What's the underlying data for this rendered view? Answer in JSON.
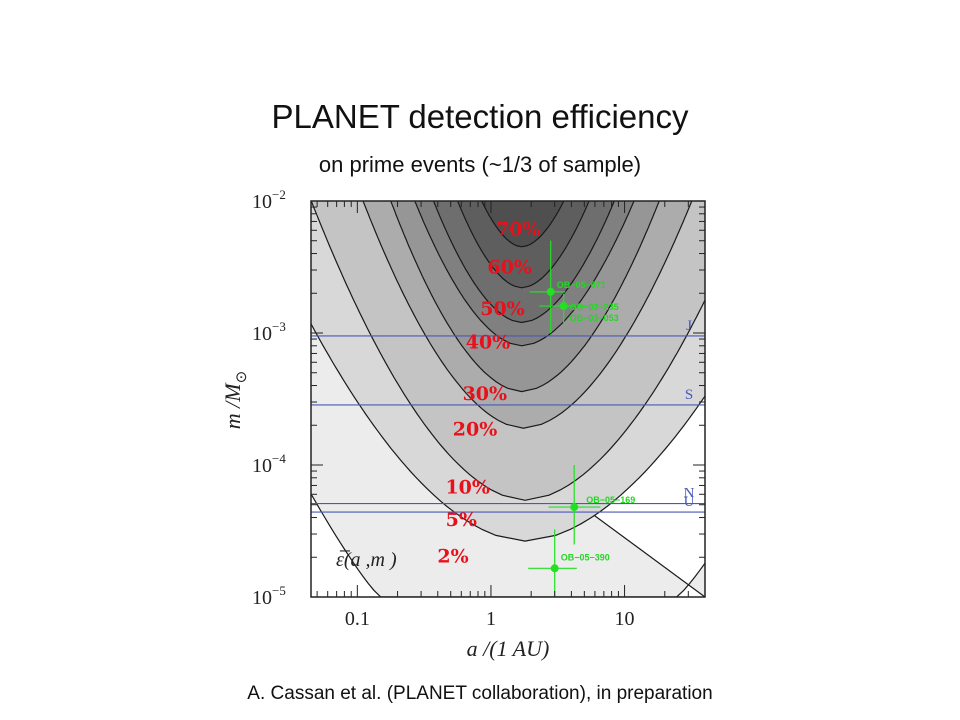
{
  "slide": {
    "title": "PLANET detection efficiency",
    "subtitle": "on prime events (~1/3 of sample)",
    "footer": "A. Cassan et al. (PLANET collaboration), in preparation"
  },
  "chart_data": {
    "type": "contour",
    "xlabel": "a /(1 AU)",
    "ylabel": "m /M",
    "ylabel_subscript": "⊙",
    "x_scale": "log",
    "y_scale": "log",
    "xlim": [
      0.045,
      40
    ],
    "ylim": [
      1e-05,
      0.01
    ],
    "x_ticks": [
      {
        "value": 0.1,
        "label": "0.1"
      },
      {
        "value": 1,
        "label": "1"
      },
      {
        "value": 10,
        "label": "10"
      }
    ],
    "y_ticks": [
      {
        "value": 1e-05,
        "base": "10",
        "exp": "−5"
      },
      {
        "value": 0.0001,
        "base": "10",
        "exp": "−4"
      },
      {
        "value": 0.001,
        "base": "10",
        "exp": "−3"
      },
      {
        "value": 0.01,
        "base": "10",
        "exp": "−2"
      }
    ],
    "annotation": "ε̅(a ,m )",
    "contour_levels": [
      {
        "label": "2%",
        "a_center": 1.8,
        "m_min": 1e-05,
        "half_width_at_1e-5": 1.08,
        "half_width_at_1e-2": 2.72,
        "fill": "#ececec",
        "label_a": 0.52,
        "label_m": 1.82e-05
      },
      {
        "label": "5%",
        "a_center": 1.8,
        "m_min": 2.65e-05,
        "half_width_at_1e-5": 0.0,
        "half_width_at_1e-2": 2.05,
        "fill": "#d8d8d8",
        "label_a": 0.6,
        "label_m": 3.45e-05
      },
      {
        "label": "10%",
        "a_center": 1.8,
        "m_min": 5.4e-05,
        "half_width_at_1e-5": 0.0,
        "half_width_at_1e-2": 1.6,
        "fill": "#c4c4c4",
        "label_a": 0.67,
        "label_m": 6.1e-05
      },
      {
        "label": "20%",
        "a_center": 1.75,
        "m_min": 0.00019,
        "half_width_at_1e-5": 0.0,
        "half_width_at_1e-2": 1.2,
        "fill": "#acacac",
        "label_a": 0.76,
        "label_m": 0.000168
      },
      {
        "label": "30%",
        "a_center": 1.7,
        "m_min": 0.00036,
        "half_width_at_1e-5": 0.0,
        "half_width_at_1e-2": 0.98,
        "fill": "#969696",
        "label_a": 0.9,
        "label_m": 0.00031
      },
      {
        "label": "40%",
        "a_center": 1.7,
        "m_min": 0.0008,
        "half_width_at_1e-5": 0.0,
        "half_width_at_1e-2": 0.8,
        "fill": "#808080",
        "label_a": 0.95,
        "label_m": 0.00076
      },
      {
        "label": "50%",
        "a_center": 1.7,
        "m_min": 0.0012,
        "half_width_at_1e-5": 0.0,
        "half_width_at_1e-2": 0.66,
        "fill": "#6e6e6e",
        "label_a": 1.22,
        "label_m": 0.00137
      },
      {
        "label": "60%",
        "a_center": 1.7,
        "m_min": 0.0022,
        "half_width_at_1e-5": 0.0,
        "half_width_at_1e-2": 0.48,
        "fill": "#5e5e5e",
        "label_a": 1.38,
        "label_m": 0.00282
      },
      {
        "label": "70%",
        "a_center": 1.7,
        "m_min": 0.0045,
        "half_width_at_1e-5": 0.0,
        "half_width_at_1e-2": 0.3,
        "fill": "#4f4f4f",
        "label_a": 1.6,
        "label_m": 0.0055
      }
    ],
    "planet_lines": [
      {
        "label": "J",
        "m": 0.00095
      },
      {
        "label": "S",
        "m": 0.000285
      },
      {
        "label": "N",
        "m": 5.1e-05
      },
      {
        "label": "U",
        "m": 4.4e-05
      }
    ],
    "events": [
      {
        "label": "OB−05−071",
        "a": 2.8,
        "m": 0.00205,
        "a_lo": 1.95,
        "a_hi": 3.6,
        "m_lo": 0.001,
        "m_hi": 0.005
      },
      {
        "label": "OB−03−235",
        "a": 3.5,
        "m": 0.0016,
        "a_lo": 2.3,
        "a_hi": 5.2,
        "m_lo": 0.0012,
        "m_hi": 0.00198
      },
      {
        "label": "OB−03−053",
        "a": 3.5,
        "m": 0.0016,
        "a_lo": null,
        "a_hi": null,
        "m_lo": null,
        "m_hi": null
      },
      {
        "label": "OB−05−169",
        "a": 4.2,
        "m": 4.8e-05,
        "a_lo": 2.7,
        "a_hi": 6.6,
        "m_lo": 2.5e-05,
        "m_hi": 0.0001
      },
      {
        "label": "OB−05−390",
        "a": 3.0,
        "m": 1.65e-05,
        "a_lo": 1.9,
        "a_hi": 4.4,
        "m_lo": 1e-05,
        "m_hi": 3.25e-05
      }
    ],
    "colors": {
      "contour_line": "#1a1a1a",
      "planet_line": "#4a59b8",
      "event": "#22e022",
      "contour_label": "#e8101a"
    }
  }
}
